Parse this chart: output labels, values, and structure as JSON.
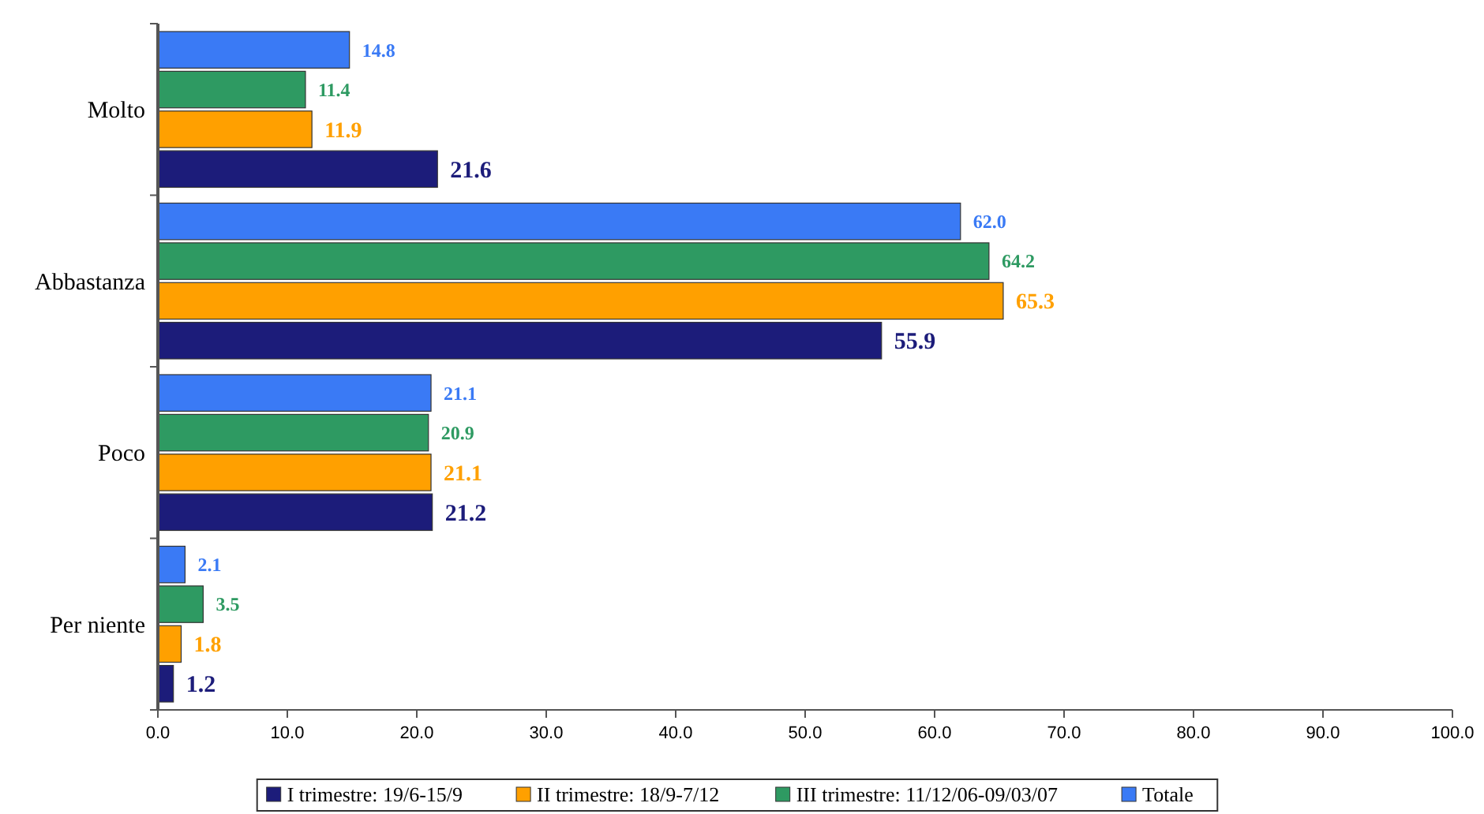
{
  "chart_data": {
    "type": "bar",
    "orientation": "horizontal",
    "categories": [
      "Molto",
      "Abbastanza",
      "Poco",
      "Per niente"
    ],
    "series": [
      {
        "name": "I trimestre: 19/6-15/9",
        "color": "#1c1c7a",
        "values": [
          21.6,
          55.9,
          21.2,
          1.2
        ],
        "value_labels": [
          "21.6",
          "55.9",
          "21.2",
          "1.2"
        ]
      },
      {
        "name": "II trimestre: 18/9-7/12",
        "color": "#ffa000",
        "values": [
          11.9,
          65.3,
          21.1,
          1.8
        ],
        "value_labels": [
          "11.9",
          "65.3",
          "21.1",
          "1.8"
        ]
      },
      {
        "name": "III trimestre: 11/12/06-09/03/07",
        "color": "#2e9a62",
        "values": [
          11.4,
          64.2,
          20.9,
          3.5
        ],
        "value_labels": [
          "11.4",
          "64.2",
          "20.9",
          "3.5"
        ]
      },
      {
        "name": "Totale",
        "color": "#3a7af5",
        "values": [
          14.8,
          62.0,
          21.1,
          2.1
        ],
        "value_labels": [
          "14.8",
          "62.0",
          "21.1",
          "2.1"
        ]
      }
    ],
    "xlim": [
      0,
      100
    ],
    "xticks": [
      {
        "value": 0,
        "label": "0.0"
      },
      {
        "value": 10,
        "label": "10.0"
      },
      {
        "value": 20,
        "label": "20.0"
      },
      {
        "value": 30,
        "label": "30.0"
      },
      {
        "value": 40,
        "label": "40.0"
      },
      {
        "value": 50,
        "label": "50.0"
      },
      {
        "value": 60,
        "label": "60.0"
      },
      {
        "value": 70,
        "label": "70.0"
      },
      {
        "value": 80,
        "label": "80.0"
      },
      {
        "value": 90,
        "label": "90.0"
      },
      {
        "value": 100,
        "label": "100.0"
      }
    ],
    "grid": false,
    "legend": "bottom"
  }
}
